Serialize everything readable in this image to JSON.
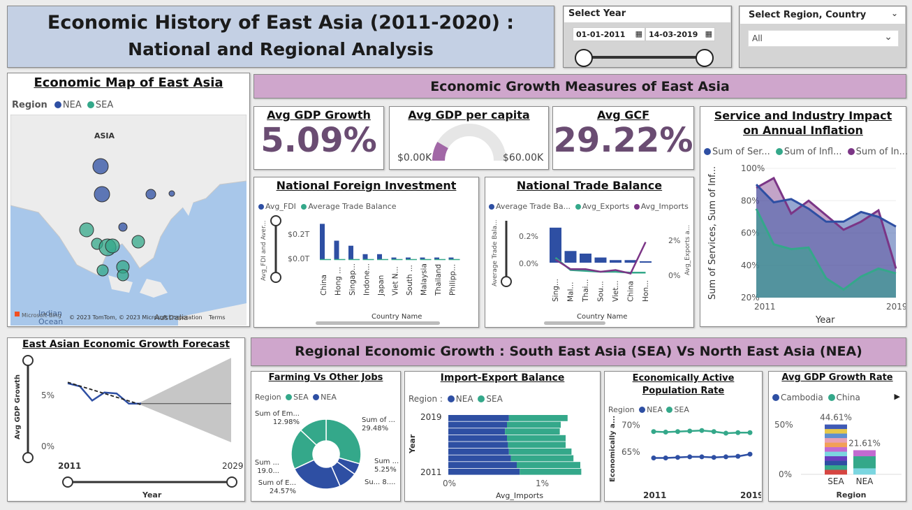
{
  "colors": {
    "nea": "#2e4fa3",
    "sea": "#34a88a",
    "imp": "#7b3586",
    "title_bg": "#c4d0e4",
    "band_bg": "#cfa6cc",
    "kpi": "#6a4c72"
  },
  "header": {
    "line1": "Economic History of East Asia (2011-2020) :",
    "line2": "National and Regional Analysis"
  },
  "year_slicer": {
    "label": "Select Year",
    "start": "01-01-2011",
    "end": "14-03-2019",
    "icon": "calendar-icon"
  },
  "region_slicer": {
    "label": "Select Region, Country",
    "value": "All",
    "icon": "chevron-down-icon"
  },
  "map": {
    "title": "Economic Map of East Asia",
    "legend_title": "Region",
    "legend": [
      "NEA",
      "SEA"
    ],
    "label_asia": "ASIA",
    "label_ocean1": "Indian",
    "label_ocean2": "Ocean",
    "label_aus": "Australia",
    "attribution": "© 2023 TomTom, © 2023 Microsoft Corporation",
    "terms": "Terms",
    "logo": "Microsoft Bing",
    "bubbles": [
      {
        "region": "NEA",
        "size": 11
      },
      {
        "region": "NEA",
        "size": 11
      },
      {
        "region": "NEA",
        "size": 7
      },
      {
        "region": "NEA",
        "size": 4
      },
      {
        "region": "NEA",
        "size": 6
      },
      {
        "region": "SEA",
        "size": 10
      },
      {
        "region": "SEA",
        "size": 8
      },
      {
        "region": "SEA",
        "size": 12
      },
      {
        "region": "SEA",
        "size": 10
      },
      {
        "region": "SEA",
        "size": 9
      },
      {
        "region": "SEA",
        "size": 8
      },
      {
        "region": "SEA",
        "size": 9
      },
      {
        "region": "SEA",
        "size": 8
      }
    ]
  },
  "growth_band": "Economic Growth Measures of East Asia",
  "kpis": {
    "gdp_growth": {
      "title": "Avg GDP Growth",
      "value": "5.09%"
    },
    "gdp_pc": {
      "title": "Avg GDP per capita",
      "min": "$0.00K",
      "max": "$60.00K",
      "fraction": 0.17
    },
    "gcf": {
      "title": "Avg GCF",
      "value": "29.22%"
    }
  },
  "fdi": {
    "title": "National Foreign Investment",
    "legend": [
      "Avg_FDI",
      "Average Trade Balance"
    ],
    "ylabel": "Avg_FDI and Aver...",
    "ticks": [
      "$0.2T",
      "$0.0T"
    ],
    "xlabel": "Country Name",
    "countries": [
      "China",
      "Hong ...",
      "Singap...",
      "Indone...",
      "Japan",
      "Viet N...",
      "South ...",
      "Malaysia",
      "Thailand",
      "Philipp..."
    ],
    "fdi_values": [
      0.21,
      0.11,
      0.08,
      0.03,
      0.03,
      0.01,
      0.01,
      0.01,
      0.01,
      0.01
    ]
  },
  "trade": {
    "title": "National Trade Balance",
    "legend": [
      "Average Trade Ba...",
      "Avg_Exports",
      "Avg_Imports"
    ],
    "ylabel_left": "Average Trade Bala...",
    "ylabel_right": "Avg_Exports a...",
    "left_ticks": [
      "0.2%",
      "0.0%"
    ],
    "right_ticks": [
      "2%",
      "1%",
      "0%"
    ],
    "xlabel": "Country Name",
    "countries": [
      "Sing...",
      "Mal...",
      "Thai...",
      "Sou...",
      "Viet...",
      "China",
      "Hon..."
    ],
    "trade_balance": [
      0.27,
      0.09,
      0.07,
      0.04,
      0.02,
      0.02,
      0.01
    ],
    "exports": [
      1.0,
      0.3,
      0.25,
      0.2,
      0.2,
      0.15,
      0.15
    ],
    "imports": [
      0.9,
      0.35,
      0.35,
      0.2,
      0.3,
      0.1,
      1.9
    ]
  },
  "inflation": {
    "title": "Service and Industry Impact on Annual Inflation",
    "legend": [
      "Sum of Ser...",
      "Sum of Infl...",
      "Sum of In..."
    ],
    "ylabel": "Sum of Services, Sum of Inf...",
    "xlabel": "Year",
    "yticks": [
      "100%",
      "80%",
      "60%",
      "40%",
      "20%"
    ],
    "xticks": [
      "2011",
      "2019"
    ],
    "ylim": [
      20,
      100
    ],
    "years": [
      2011,
      2012,
      2013,
      2014,
      2015,
      2016,
      2017,
      2018,
      2019
    ],
    "services": [
      90,
      79,
      81,
      75,
      67,
      67,
      73,
      70,
      64
    ],
    "inflation": [
      75,
      53,
      50,
      51,
      32,
      25,
      33,
      38,
      35
    ],
    "industry": [
      88,
      94,
      72,
      80,
      71,
      62,
      67,
      74,
      38
    ]
  },
  "forecast": {
    "title": "East Asian Economic Growth Forecast",
    "ylabel": "Avg GDP Growth",
    "xlabel": "Year",
    "yticks": [
      "5%",
      "0%"
    ],
    "xticks": [
      "2011",
      "2029"
    ],
    "years": [
      2011,
      2012,
      2013,
      2014,
      2015,
      2016,
      2017
    ],
    "values": [
      6.2,
      5.9,
      4.5,
      5.3,
      5.2,
      4.2,
      4.2
    ],
    "forecast_value": 4.2
  },
  "regional_band": "Regional Economic Growth : South East Asia (SEA) Vs North East Asia (NEA)",
  "farming": {
    "title": "Farming Vs Other Jobs",
    "legend_title": "Region",
    "legend": [
      "SEA",
      "NEA"
    ],
    "slices": [
      {
        "label": "Sum of ...",
        "value": "29.48%",
        "region": "SEA",
        "pct": 29.48
      },
      {
        "label": "Sum ...",
        "value": "5.25%",
        "region": "NEA",
        "pct": 5.25
      },
      {
        "label": "Su...",
        "value": "8....",
        "region": "NEA",
        "pct": 8.72
      },
      {
        "label": "Sum of E...",
        "value": "24.57%",
        "region": "NEA",
        "pct": 24.57
      },
      {
        "label": "Sum ...",
        "value": "19.0...",
        "region": "SEA",
        "pct": 19.0
      },
      {
        "label": "Sum of Em...",
        "value": "12.98%",
        "region": "SEA",
        "pct": 12.98
      }
    ]
  },
  "impexp": {
    "title": "Import-Export Balance",
    "legend_title": "Region :",
    "legend": [
      "NEA",
      "SEA"
    ],
    "ylabel": "Year",
    "xlabel": "Avg_Imports",
    "yticks": [
      "2019",
      "2011"
    ],
    "xticks": [
      "0%",
      "1%"
    ],
    "nea": [
      0.62,
      0.6,
      0.58,
      0.6,
      0.61,
      0.62,
      0.64,
      0.7,
      0.73
    ],
    "sea": [
      0.6,
      0.55,
      0.56,
      0.6,
      0.59,
      0.64,
      0.64,
      0.65,
      0.63
    ]
  },
  "active": {
    "title": "Economically Active Population Rate",
    "legend_title": "Region",
    "legend": [
      "NEA",
      "SEA"
    ],
    "ylabel": "Economically a...",
    "yticks": [
      "70%",
      "65%"
    ],
    "xticks": [
      "2011",
      "2019"
    ],
    "sea": [
      68.8,
      68.7,
      68.8,
      68.9,
      69.0,
      68.8,
      68.5,
      68.6,
      68.6
    ],
    "nea": [
      63.9,
      63.9,
      64.0,
      64.1,
      64.1,
      64.0,
      64.1,
      64.2,
      64.6
    ]
  },
  "gdprate": {
    "title": "Avg GDP Growth Rate",
    "legend": [
      "Cambodia",
      "China"
    ],
    "more_icon": "chevron-right-icon",
    "yticks": [
      "50%",
      "0%"
    ],
    "xlabel": "Region",
    "categories": [
      "SEA",
      "NEA"
    ],
    "totals": [
      "44.61%",
      "21.61%"
    ],
    "values": [
      44.61,
      21.61
    ]
  }
}
